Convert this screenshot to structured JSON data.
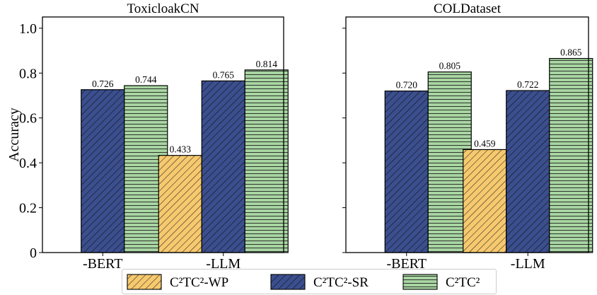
{
  "chart_data": [
    {
      "type": "bar",
      "title": "ToxicloakCN",
      "ylabel": "Accuracy",
      "xlabel": "",
      "ylim": [
        0,
        1.05
      ],
      "yticks": [
        0,
        0.2,
        0.4,
        0.6,
        0.8,
        1.0
      ],
      "ytick_labels": [
        "0",
        "0.2",
        "0.4",
        "0.6",
        "0.8",
        "1.0"
      ],
      "categories": [
        "-BERT",
        "-LLM"
      ],
      "series": [
        {
          "name": "C²TC²-WP",
          "values": [
            null,
            0.433
          ],
          "labels": [
            "",
            "0.433"
          ]
        },
        {
          "name": "C²TC²-SR",
          "values": [
            0.726,
            0.765
          ],
          "labels": [
            "0.726",
            "0.765"
          ]
        },
        {
          "name": "C²TC²",
          "values": [
            0.744,
            0.814
          ],
          "labels": [
            "0.744",
            "0.814"
          ]
        }
      ],
      "grid": false
    },
    {
      "type": "bar",
      "title": "COLDataset",
      "ylabel": "",
      "xlabel": "",
      "ylim": [
        0,
        1.05
      ],
      "categories": [
        "-BERT",
        "-LLM"
      ],
      "series": [
        {
          "name": "C²TC²-WP",
          "values": [
            null,
            0.459
          ],
          "labels": [
            "",
            "0.459"
          ]
        },
        {
          "name": "C²TC²-SR",
          "values": [
            0.72,
            0.722
          ],
          "labels": [
            "0.720",
            "0.722"
          ]
        },
        {
          "name": "C²TC²",
          "values": [
            0.805,
            0.865
          ],
          "labels": [
            "0.805",
            "0.865"
          ]
        }
      ],
      "grid": false
    }
  ],
  "legend": {
    "placement": "bottom-center",
    "items": [
      {
        "label": "C²TC²-WP",
        "color": "#f7c96e",
        "hatch": "diagonal"
      },
      {
        "label": "C²TC²-SR",
        "color": "#3b4f8f",
        "hatch": "diagonal"
      },
      {
        "label": "C²TC²",
        "color": "#a8d5a2",
        "hatch": "horizontal"
      }
    ]
  }
}
